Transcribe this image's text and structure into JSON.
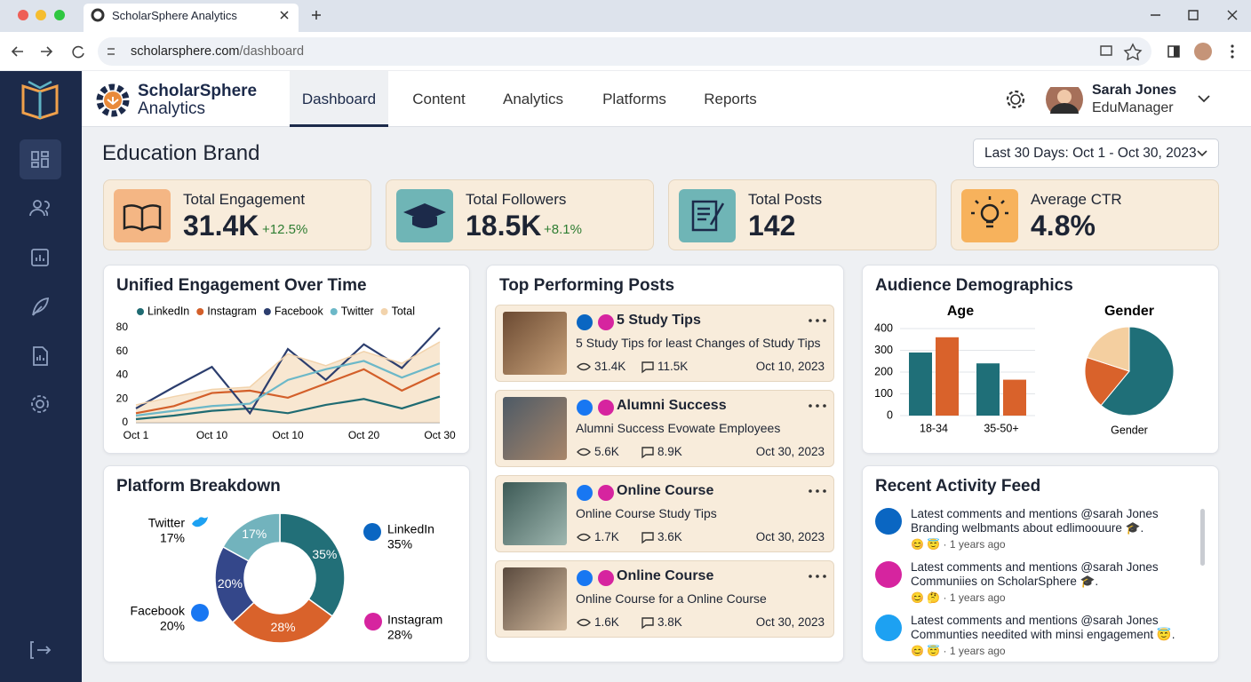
{
  "browser": {
    "tab_title": "ScholarSphere Analytics",
    "url_host": "scholarsphere.com",
    "url_path": "/dashboard"
  },
  "brand": {
    "line1": "ScholarSphere",
    "line2": "Analytics"
  },
  "nav": [
    "Dashboard",
    "Content",
    "Analytics",
    "Platforms",
    "Reports"
  ],
  "user": {
    "name": "Sarah Jones",
    "role": "EduManager"
  },
  "page_title": "Education Brand",
  "date_range": "Last 30 Days: Oct 1 - Oct 30, 2023",
  "kpis": [
    {
      "label": "Total Engagement",
      "value": "31.4K",
      "change": "+12.5%"
    },
    {
      "label": "Total Followers",
      "value": "18.5K",
      "change": "+8.1%"
    },
    {
      "label": "Total Posts",
      "value": "142"
    },
    {
      "label": "Average CTR",
      "value": "4.8%"
    }
  ],
  "demographics_title": "Audience Demographics",
  "posts": {
    "title": "Top Performing Posts",
    "items": [
      {
        "title": "5 Study Tips",
        "text": "5 Study Tips for least Changes of Study Tips",
        "views": "31.4K",
        "comments": "11.5K",
        "date": "Oct 10, 2023"
      },
      {
        "title": "Alumni Success",
        "text": "Alumni Success Evowate Employees",
        "views": "5.6K",
        "comments": "8.9K",
        "date": "Oct 30, 2023"
      },
      {
        "title": "Online Course",
        "text": "Online Course Study Tips",
        "views": "1.7K",
        "comments": "3.6K",
        "date": "Oct 30, 2023"
      },
      {
        "title": "Online Course",
        "text": "Online Course for a Online Course",
        "views": "1.6K",
        "comments": "3.8K",
        "date": "Oct 30, 2023"
      }
    ]
  },
  "activity": {
    "title": "Recent Activity Feed",
    "items": [
      {
        "line1": "Latest comments and mentions @sarah Jones",
        "line2": "Branding welbmants about edlimoouure 🎓.",
        "time": "😊 😇 · 1 years ago"
      },
      {
        "line1": "Latest comments and mentions @sarah Jones",
        "line2": "Communiies on ScholarSphere 🎓.",
        "time": "😊 🤔 · 1 years ago"
      },
      {
        "line1": "Latest comments and mentions @sarah Jones",
        "line2": "Communties needited with minsi engagement 😇.",
        "time": "😊 😇 · 1 years ago"
      }
    ]
  },
  "chart_data": [
    {
      "type": "line",
      "title": "Unified Engagement Over Time",
      "categories": [
        "Oct 1",
        null,
        "Oct 10",
        null,
        "Oct 10",
        null,
        "Oct 20",
        null,
        "Oct 30"
      ],
      "ylim": [
        0,
        80
      ],
      "yticks": [
        0,
        20,
        40,
        60,
        80
      ],
      "series": [
        {
          "name": "LinkedIn",
          "color": "#1f6b72",
          "values": [
            3,
            6,
            10,
            12,
            8,
            15,
            20,
            12,
            22
          ]
        },
        {
          "name": "Instagram",
          "color": "#d35f2a",
          "values": [
            8,
            14,
            25,
            27,
            21,
            33,
            45,
            27,
            42
          ]
        },
        {
          "name": "Facebook",
          "color": "#2c3e6e",
          "values": [
            12,
            30,
            47,
            8,
            62,
            36,
            66,
            46,
            80
          ]
        },
        {
          "name": "Twitter",
          "color": "#6cb8c8",
          "values": [
            6,
            10,
            14,
            16,
            36,
            45,
            52,
            38,
            50
          ]
        },
        {
          "name": "Total",
          "color": "#f2d3ac",
          "area": true,
          "values": [
            15,
            22,
            28,
            30,
            58,
            48,
            60,
            50,
            68
          ]
        }
      ]
    },
    {
      "type": "bar",
      "title": "Age",
      "categories": [
        "18-34",
        "35-50+"
      ],
      "ylim": [
        0,
        400
      ],
      "yticks": [
        0,
        100,
        200,
        300,
        400
      ],
      "grid": true,
      "series": [
        {
          "color": "#1f6f78",
          "values": [
            290,
            240
          ]
        },
        {
          "color": "#d9622b",
          "values": [
            360,
            165
          ]
        }
      ]
    },
    {
      "type": "pie",
      "title": "Gender",
      "caption": "Gender",
      "values": [
        61,
        19,
        20
      ],
      "colors": [
        "#1f6f78",
        "#d9622b",
        "#f4cfa0"
      ]
    },
    {
      "type": "donut",
      "title": "Platform Breakdown",
      "categories": [
        "LinkedIn",
        "Instagram",
        "Facebook",
        "Twitter"
      ],
      "values": [
        35,
        28,
        20,
        17
      ],
      "value_labels": [
        "35%",
        "28%",
        "20%",
        "17%"
      ],
      "colors": [
        "#226f78",
        "#d9622b",
        "#34478a",
        "#72b3bd"
      ]
    }
  ]
}
